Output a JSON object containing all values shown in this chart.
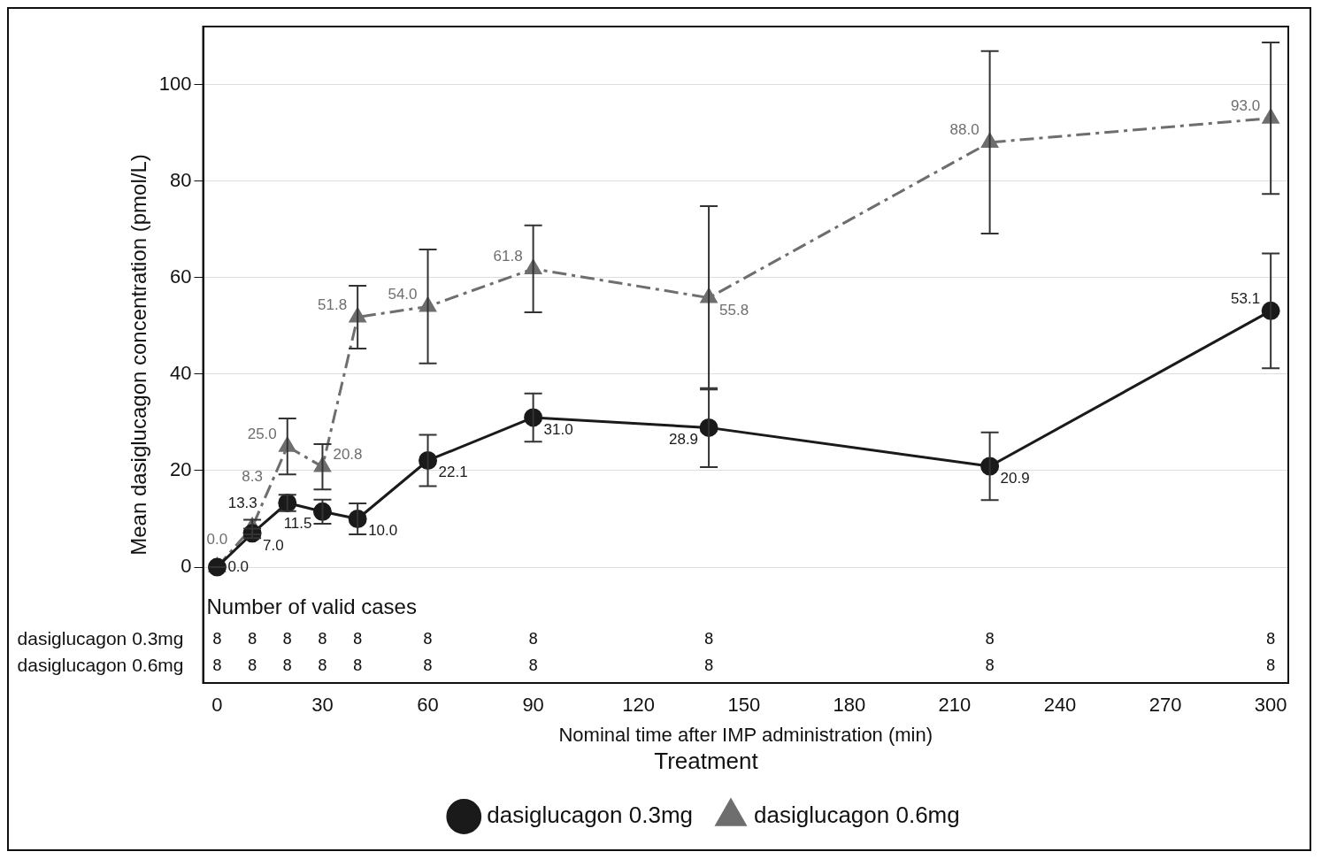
{
  "chart_data": {
    "type": "line",
    "xlabel": "Nominal time after IMP administration (min)",
    "ylabel": "Mean dasiglucagon concentration (pmol/L)",
    "legend_title": "Treatment",
    "x": [
      0,
      10,
      20,
      30,
      40,
      60,
      90,
      140,
      220,
      300
    ],
    "series": [
      {
        "name": "dasiglucagon 0.3mg",
        "color": "#1a1a1a",
        "marker": "circle",
        "line_style": "solid",
        "values": [
          0.0,
          7.0,
          13.3,
          11.5,
          10.0,
          22.1,
          31.0,
          28.9,
          20.9,
          53.1
        ],
        "value_labels": [
          "0.0",
          "7.0",
          "13.3",
          "11.5",
          "10.0",
          "22.1",
          "31.0",
          "28.9",
          "20.9",
          "53.1"
        ],
        "errors": [
          0,
          1,
          1.7,
          2.5,
          3.2,
          5.3,
          5,
          8.2,
          7,
          11.9
        ]
      },
      {
        "name": "dasiglucagon 0.6mg",
        "color": "#6e6e6e",
        "marker": "triangle",
        "line_style": "dashed",
        "values": [
          0.0,
          8.3,
          25.0,
          20.8,
          51.8,
          54.0,
          61.8,
          55.8,
          88.0,
          93.0
        ],
        "value_labels": [
          "0.0",
          "8.3",
          "25.0",
          "20.8",
          "51.8",
          "54.0",
          "61.8",
          "55.8",
          "88.0",
          "93.0"
        ],
        "errors": [
          0,
          1.5,
          5.8,
          4.7,
          6.5,
          11.8,
          9,
          19,
          18.9,
          15.7
        ]
      }
    ],
    "xlim": [
      -4,
      305
    ],
    "xticks": [
      0,
      30,
      60,
      90,
      120,
      150,
      180,
      210,
      240,
      270,
      300
    ],
    "ylim": [
      -24,
      112
    ],
    "yticks": [
      0,
      20,
      40,
      60,
      80,
      100
    ],
    "grid": "y",
    "legend": "bottom",
    "annotations": [
      "Number of valid cases",
      "dasiglucagon 0.3mg",
      "8",
      "8",
      "8",
      "8",
      "8",
      "8",
      "8",
      "8",
      "8",
      "8",
      "dasiglucagon 0.6mg",
      "8",
      "8",
      "8",
      "8",
      "8",
      "8",
      "8",
      "8",
      "8",
      "8"
    ]
  }
}
